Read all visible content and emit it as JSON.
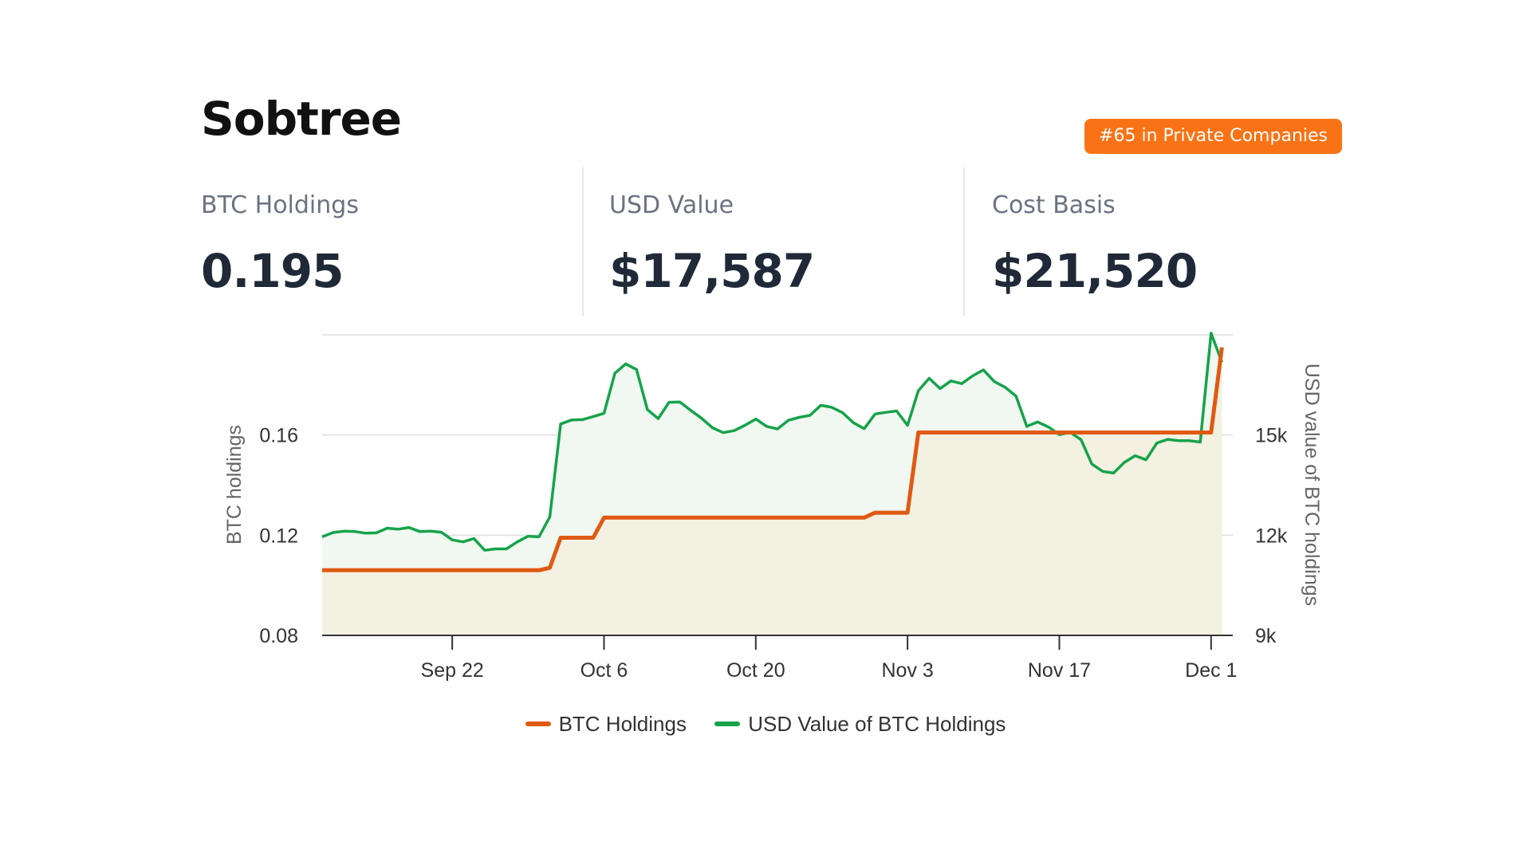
{
  "company": {
    "name": "Sobtree",
    "rank_badge": "#65 in Private Companies"
  },
  "stats": [
    {
      "label": "BTC Holdings",
      "value": "0.195"
    },
    {
      "label": "USD Value",
      "value": "$17,587"
    },
    {
      "label": "Cost Basis",
      "value": "$21,520"
    }
  ],
  "colors": {
    "accent": "#f97316",
    "btc_line": "#e05a12",
    "btc_fill": "#f3efdf",
    "usd_line": "#16a34a",
    "usd_fill": "#f1f7f1",
    "divider": "#e5e7eb",
    "grid": "#dddddd",
    "axis": "#333333"
  },
  "chart_data": {
    "type": "line",
    "title": "",
    "xlabel": "",
    "ylabel": "BTC holdings",
    "y2label": "USD value of BTC holdings",
    "x_range": [
      "2024-09-10",
      "2024-12-03"
    ],
    "ylim": [
      0.08,
      0.2
    ],
    "y2lim": [
      9000,
      18000
    ],
    "yticks": [
      0.08,
      0.12,
      0.16
    ],
    "ytick_labels": [
      "0.08",
      "0.12",
      "0.16"
    ],
    "y2ticks": [
      9000,
      12000,
      15000
    ],
    "y2tick_labels": [
      "9k",
      "12k",
      "15k"
    ],
    "xticks": [
      "2024-09-22",
      "2024-10-06",
      "2024-10-20",
      "2024-11-03",
      "2024-11-17",
      "2024-12-01"
    ],
    "xtick_labels": [
      "Sep 22",
      "Oct 6",
      "Oct 20",
      "Nov 3",
      "Nov 17",
      "Dec 1"
    ],
    "grid": true,
    "legend_position": "bottom",
    "series": [
      {
        "name": "BTC Holdings",
        "axis": "left",
        "dates": [
          "2024-09-10",
          "2024-09-30",
          "2024-10-01",
          "2024-10-02",
          "2024-10-05",
          "2024-10-06",
          "2024-10-07",
          "2024-10-30",
          "2024-10-31",
          "2024-11-01",
          "2024-11-03",
          "2024-11-04",
          "2024-12-01",
          "2024-12-02"
        ],
        "values": [
          0.106,
          0.106,
          0.107,
          0.119,
          0.119,
          0.127,
          0.127,
          0.127,
          0.129,
          0.129,
          0.129,
          0.161,
          0.161,
          0.195
        ]
      },
      {
        "name": "USD Value of BTC Holdings",
        "axis": "right",
        "dates": [
          "2024-09-10",
          "2024-09-11",
          "2024-09-12",
          "2024-09-13",
          "2024-09-14",
          "2024-09-15",
          "2024-09-16",
          "2024-09-17",
          "2024-09-18",
          "2024-09-19",
          "2024-09-20",
          "2024-09-21",
          "2024-09-22",
          "2024-09-23",
          "2024-09-24",
          "2024-09-25",
          "2024-09-26",
          "2024-09-27",
          "2024-09-28",
          "2024-09-29",
          "2024-09-30",
          "2024-10-01",
          "2024-10-02",
          "2024-10-03",
          "2024-10-04",
          "2024-10-05",
          "2024-10-06",
          "2024-10-07",
          "2024-10-08",
          "2024-10-09",
          "2024-10-10",
          "2024-10-11",
          "2024-10-12",
          "2024-10-13",
          "2024-10-14",
          "2024-10-15",
          "2024-10-16",
          "2024-10-17",
          "2024-10-18",
          "2024-10-19",
          "2024-10-20",
          "2024-10-21",
          "2024-10-22",
          "2024-10-23",
          "2024-10-24",
          "2024-10-25",
          "2024-10-26",
          "2024-10-27",
          "2024-10-28",
          "2024-10-29",
          "2024-10-30",
          "2024-10-31",
          "2024-11-01",
          "2024-11-02",
          "2024-11-03",
          "2024-11-04",
          "2024-11-05",
          "2024-11-06",
          "2024-11-07",
          "2024-11-08",
          "2024-11-09",
          "2024-11-10",
          "2024-11-11",
          "2024-11-12",
          "2024-11-13",
          "2024-11-14",
          "2024-11-15",
          "2024-11-16",
          "2024-11-17",
          "2024-11-18",
          "2024-11-19",
          "2024-11-20",
          "2024-11-21",
          "2024-11-22",
          "2024-11-23",
          "2024-11-24",
          "2024-11-25",
          "2024-11-26",
          "2024-11-27",
          "2024-11-28",
          "2024-11-29",
          "2024-11-30",
          "2024-12-01",
          "2024-12-02"
        ],
        "values": [
          11950,
          12080,
          12120,
          12110,
          12060,
          12070,
          12210,
          12180,
          12230,
          12110,
          12120,
          12090,
          11860,
          11800,
          11900,
          11550,
          11590,
          11590,
          11800,
          11970,
          11950,
          12550,
          15330,
          15450,
          15460,
          15550,
          15650,
          16850,
          17130,
          16960,
          15760,
          15490,
          15980,
          15990,
          15740,
          15500,
          15220,
          15070,
          15130,
          15290,
          15480,
          15260,
          15180,
          15440,
          15530,
          15590,
          15890,
          15830,
          15670,
          15370,
          15190,
          15630,
          15680,
          15720,
          15290,
          16330,
          16700,
          16390,
          16620,
          16540,
          16770,
          16950,
          16600,
          16430,
          16170,
          15260,
          15390,
          15240,
          15010,
          15080,
          14860,
          14130,
          13910,
          13860,
          14180,
          14380,
          14260,
          14760,
          14870,
          14830,
          14830,
          14790,
          18050,
          17180
        ]
      }
    ]
  }
}
